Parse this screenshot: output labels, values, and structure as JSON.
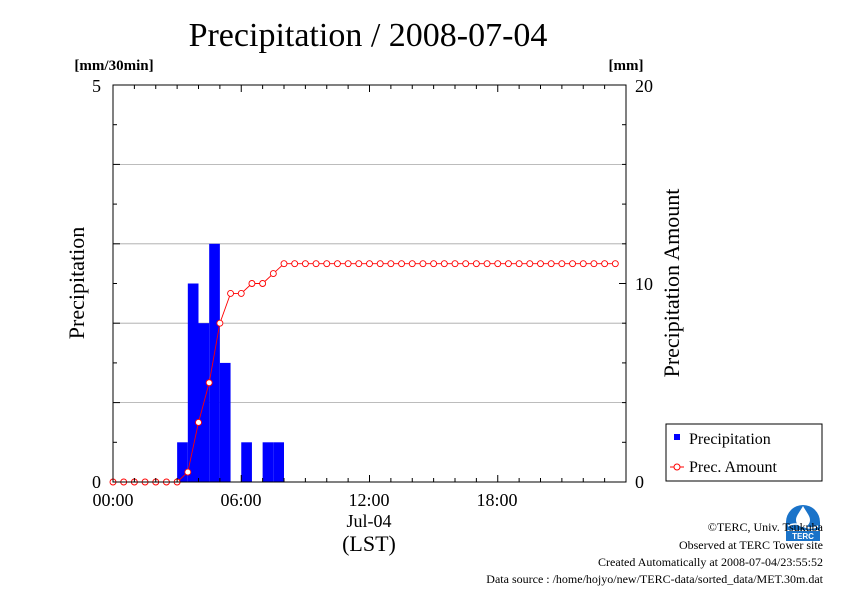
{
  "chart_data": {
    "type": "bar",
    "title": "Precipitation / 2008-07-04",
    "ylabel_left": "Precipitation",
    "ylabel_right": "Precipitation Amount",
    "unit_left": "[mm/30min]",
    "unit_right": "[mm]",
    "ylim_left": [
      0,
      5
    ],
    "ylim_right": [
      0,
      20
    ],
    "yticks_left": [
      "0",
      "5"
    ],
    "yticks_right": [
      "0",
      "10",
      "20"
    ],
    "xticks": [
      "00:00",
      "06:00",
      "12:00",
      "18:00"
    ],
    "xlabel_date": "Jul-04",
    "xlabel_tz": "(LST)",
    "grid": true,
    "legend_position": "bottom-right",
    "x": [
      "00:00",
      "00:30",
      "01:00",
      "01:30",
      "02:00",
      "02:30",
      "03:00",
      "03:30",
      "04:00",
      "04:30",
      "05:00",
      "05:30",
      "06:00",
      "06:30",
      "07:00",
      "07:30",
      "08:00",
      "08:30",
      "09:00",
      "09:30",
      "10:00",
      "10:30",
      "11:00",
      "11:30",
      "12:00",
      "12:30",
      "13:00",
      "13:30",
      "14:00",
      "14:30",
      "15:00",
      "15:30",
      "16:00",
      "16:30",
      "17:00",
      "17:30",
      "18:00",
      "18:30",
      "19:00",
      "19:30",
      "20:00",
      "20:30",
      "21:00",
      "21:30",
      "22:00",
      "22:30",
      "23:00",
      "23:30"
    ],
    "series": [
      {
        "name": "Precipitation",
        "type": "bar",
        "axis": "left",
        "color": "#0000ff",
        "values": [
          0,
          0,
          0,
          0,
          0,
          0,
          0.5,
          2.5,
          2.0,
          3.0,
          1.5,
          0,
          0.5,
          0,
          0.5,
          0.5,
          0,
          0,
          0,
          0,
          0,
          0,
          0,
          0,
          0,
          0,
          0,
          0,
          0,
          0,
          0,
          0,
          0,
          0,
          0,
          0,
          0,
          0,
          0,
          0,
          0,
          0,
          0,
          0,
          0,
          0,
          0,
          0
        ]
      },
      {
        "name": "Prec. Amount",
        "type": "line",
        "axis": "right",
        "color": "#ff0000",
        "values": [
          0,
          0,
          0,
          0,
          0,
          0,
          0,
          0.5,
          3.0,
          5.0,
          8.0,
          9.5,
          9.5,
          10.0,
          10.0,
          10.5,
          11.0,
          11.0,
          11.0,
          11.0,
          11.0,
          11.0,
          11.0,
          11.0,
          11.0,
          11.0,
          11.0,
          11.0,
          11.0,
          11.0,
          11.0,
          11.0,
          11.0,
          11.0,
          11.0,
          11.0,
          11.0,
          11.0,
          11.0,
          11.0,
          11.0,
          11.0,
          11.0,
          11.0,
          11.0,
          11.0,
          11.0,
          11.0
        ]
      }
    ]
  },
  "footer": {
    "copyright": "©TERC, Univ. Tsukuba",
    "observed": "Observed at TERC Tower site",
    "created": "Created Automatically at 2008-07-04/23:55:52",
    "source": "Data source : /home/hojyo/new/TERC-data/sorted_data/MET.30m.dat"
  },
  "logo": {
    "text": "TERC"
  }
}
